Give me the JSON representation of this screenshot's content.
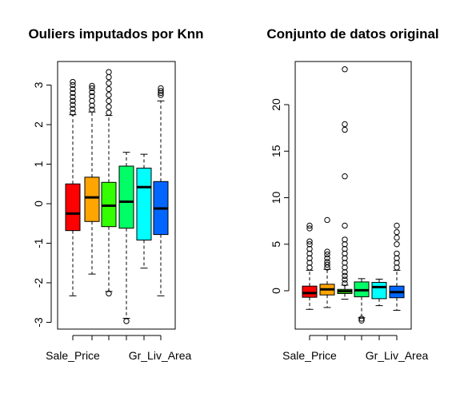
{
  "chart_data": [
    {
      "type": "boxplot",
      "title": "Ouliers imputados por Knn",
      "xlabel": "",
      "ylabel": "",
      "ylim": [
        -3.1,
        3.6
      ],
      "yticks": [
        -3,
        -2,
        -1,
        0,
        1,
        2,
        3
      ],
      "categories": [
        "Sale_Price",
        "",
        "",
        "Gr_Liv_Area",
        "",
        ""
      ],
      "x_tick_labels": [
        "Sale_Price",
        "Gr_Liv_Area"
      ],
      "grid": false,
      "series": [
        {
          "color": "#FF0000",
          "lower_whisker": -2.33,
          "q1": -0.68,
          "median": -0.25,
          "q3": 0.5,
          "upper_whisker": 2.25,
          "outliers": [
            2.3,
            2.4,
            2.5,
            2.6,
            2.7,
            2.8,
            2.9,
            3.0,
            3.08
          ]
        },
        {
          "color": "#FFA500",
          "lower_whisker": -1.78,
          "q1": -0.45,
          "median": 0.16,
          "q3": 0.67,
          "upper_whisker": 2.32,
          "outliers": [
            2.38,
            2.48,
            2.6,
            2.72,
            2.82,
            2.92,
            2.98
          ]
        },
        {
          "color": "#33FF00",
          "lower_whisker": -2.22,
          "q1": -0.58,
          "median": -0.05,
          "q3": 0.54,
          "upper_whisker": 2.23,
          "outliers": [
            -2.27,
            2.3,
            2.45,
            2.6,
            2.75,
            2.9,
            3.05,
            3.2,
            3.33
          ]
        },
        {
          "color": "#00FF66",
          "lower_whisker": -2.9,
          "q1": -0.62,
          "median": 0.05,
          "q3": 0.95,
          "upper_whisker": 1.3,
          "outliers": [
            -2.97
          ]
        },
        {
          "color": "#00FFFF",
          "lower_whisker": -1.63,
          "q1": -0.92,
          "median": 0.42,
          "q3": 0.9,
          "upper_whisker": 1.25,
          "outliers": []
        },
        {
          "color": "#0066FF",
          "lower_whisker": -2.33,
          "q1": -0.78,
          "median": -0.12,
          "q3": 0.56,
          "upper_whisker": 2.6,
          "outliers": [
            2.75,
            2.8,
            2.85,
            2.92
          ]
        }
      ]
    },
    {
      "type": "boxplot",
      "title": "Conjunto de datos original",
      "xlabel": "",
      "ylabel": "",
      "ylim": [
        -4.3,
        24.4
      ],
      "yticks": [
        0,
        5,
        10,
        15,
        20
      ],
      "categories": [
        "Sale_Price",
        "",
        "",
        "Gr_Liv_Area",
        "",
        ""
      ],
      "x_tick_labels": [
        "Sale_Price",
        "Gr_Liv_Area"
      ],
      "grid": false,
      "series": [
        {
          "color": "#FF0000",
          "lower_whisker": -2.0,
          "q1": -0.7,
          "median": -0.25,
          "q3": 0.5,
          "upper_whisker": 2.2,
          "outliers": [
            2.5,
            3.0,
            3.5,
            4.0,
            4.5,
            5.0,
            5.3,
            6.7,
            7.0
          ]
        },
        {
          "color": "#FFA500",
          "lower_whisker": -1.8,
          "q1": -0.45,
          "median": 0.15,
          "q3": 0.7,
          "upper_whisker": 2.3,
          "outliers": [
            2.5,
            2.8,
            3.1,
            3.5,
            3.9,
            4.2,
            7.6
          ]
        },
        {
          "color": "#33FF00",
          "lower_whisker": -0.9,
          "q1": -0.3,
          "median": -0.05,
          "q3": 0.15,
          "upper_whisker": 0.6,
          "outliers": [
            0.8,
            1.2,
            1.6,
            2.0,
            2.5,
            3.0,
            3.5,
            4.0,
            4.5,
            5.0,
            5.5,
            7.0,
            12.3,
            17.3,
            17.9,
            23.8
          ]
        },
        {
          "color": "#00FF66",
          "lower_whisker": -2.9,
          "q1": -0.65,
          "median": 0.05,
          "q3": 0.95,
          "upper_whisker": 1.3,
          "outliers": [
            -3.0,
            -3.2
          ]
        },
        {
          "color": "#00FFFF",
          "lower_whisker": -1.6,
          "q1": -0.85,
          "median": 0.4,
          "q3": 0.9,
          "upper_whisker": 1.25,
          "outliers": []
        },
        {
          "color": "#0066FF",
          "lower_whisker": -2.1,
          "q1": -0.75,
          "median": -0.15,
          "q3": 0.5,
          "upper_whisker": 2.2,
          "outliers": [
            2.5,
            3.0,
            3.5,
            4.0,
            5.0,
            5.7,
            6.3,
            7.0
          ]
        }
      ]
    }
  ]
}
